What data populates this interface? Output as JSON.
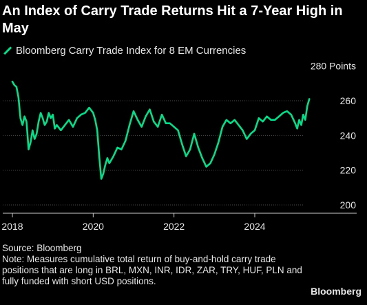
{
  "title": "An Index of Carry Trade Returns Hit a 7-Year High in May",
  "legend_label": "Bloomberg Carry Trade Index for 8 EM Currencies",
  "colors": {
    "series": "#00e08a",
    "grid": "#4d4d4d",
    "text": "#e6e6e6",
    "background": "#000000"
  },
  "source": "Source: Bloomberg",
  "note": "Note: Measures cumulative total return of buy-and-hold carry trade positions that are long in BRL, MXN, INR, IDR, ZAR, TRY, HUF, PLN and fully funded with short USD positions.",
  "brand": "Bloomberg",
  "chart_data": {
    "type": "line",
    "ylim": [
      195,
      285
    ],
    "yticks": [
      200,
      220,
      240,
      260,
      280
    ],
    "ytick_labels": [
      "200",
      "220",
      "240",
      "260",
      "280 Points"
    ],
    "xlim": [
      2017.75,
      2025.45
    ],
    "xticks": [
      2018,
      2020,
      2022,
      2024
    ],
    "xtick_labels": [
      "2018",
      "2020",
      "2022",
      "2024"
    ],
    "grid": true,
    "series": [
      {
        "name": "Bloomberg Carry Trade Index for 8 EM Currencies",
        "x": [
          2018.0,
          2018.05,
          2018.1,
          2018.15,
          2018.2,
          2018.25,
          2018.3,
          2018.35,
          2018.4,
          2018.45,
          2018.5,
          2018.55,
          2018.6,
          2018.65,
          2018.7,
          2018.75,
          2018.8,
          2018.85,
          2018.9,
          2018.95,
          2019.0,
          2019.05,
          2019.1,
          2019.2,
          2019.3,
          2019.4,
          2019.5,
          2019.6,
          2019.7,
          2019.8,
          2019.9,
          2020.0,
          2020.05,
          2020.1,
          2020.15,
          2020.2,
          2020.25,
          2020.3,
          2020.35,
          2020.4,
          2020.5,
          2020.6,
          2020.7,
          2020.8,
          2020.9,
          2021.0,
          2021.1,
          2021.2,
          2021.3,
          2021.4,
          2021.5,
          2021.6,
          2021.7,
          2021.8,
          2021.9,
          2022.0,
          2022.1,
          2022.2,
          2022.3,
          2022.4,
          2022.5,
          2022.6,
          2022.7,
          2022.8,
          2022.9,
          2023.0,
          2023.1,
          2023.2,
          2023.3,
          2023.4,
          2023.5,
          2023.6,
          2023.7,
          2023.8,
          2023.9,
          2024.0,
          2024.1,
          2024.2,
          2024.3,
          2024.4,
          2024.5,
          2024.6,
          2024.7,
          2024.8,
          2024.9,
          2025.0,
          2025.05,
          2025.1,
          2025.15,
          2025.2,
          2025.25,
          2025.3,
          2025.35
        ],
        "values": [
          271,
          269,
          268,
          262,
          250,
          246,
          251,
          248,
          232,
          236,
          243,
          238,
          241,
          248,
          253,
          250,
          246,
          248,
          253,
          250,
          252,
          244,
          246,
          243,
          246,
          249,
          245,
          250,
          252,
          253,
          256,
          253,
          249,
          243,
          228,
          215,
          218,
          223,
          227,
          224,
          228,
          233,
          232,
          237,
          246,
          254,
          249,
          245,
          251,
          255,
          248,
          245,
          252,
          247,
          247,
          245,
          243,
          235,
          228,
          232,
          241,
          233,
          227,
          222,
          224,
          229,
          236,
          245,
          249,
          247,
          249,
          246,
          243,
          238,
          241,
          243,
          250,
          248,
          251,
          249,
          249,
          251,
          253,
          254,
          252,
          247,
          244,
          249,
          246,
          252,
          249,
          257,
          261
        ]
      }
    ]
  }
}
